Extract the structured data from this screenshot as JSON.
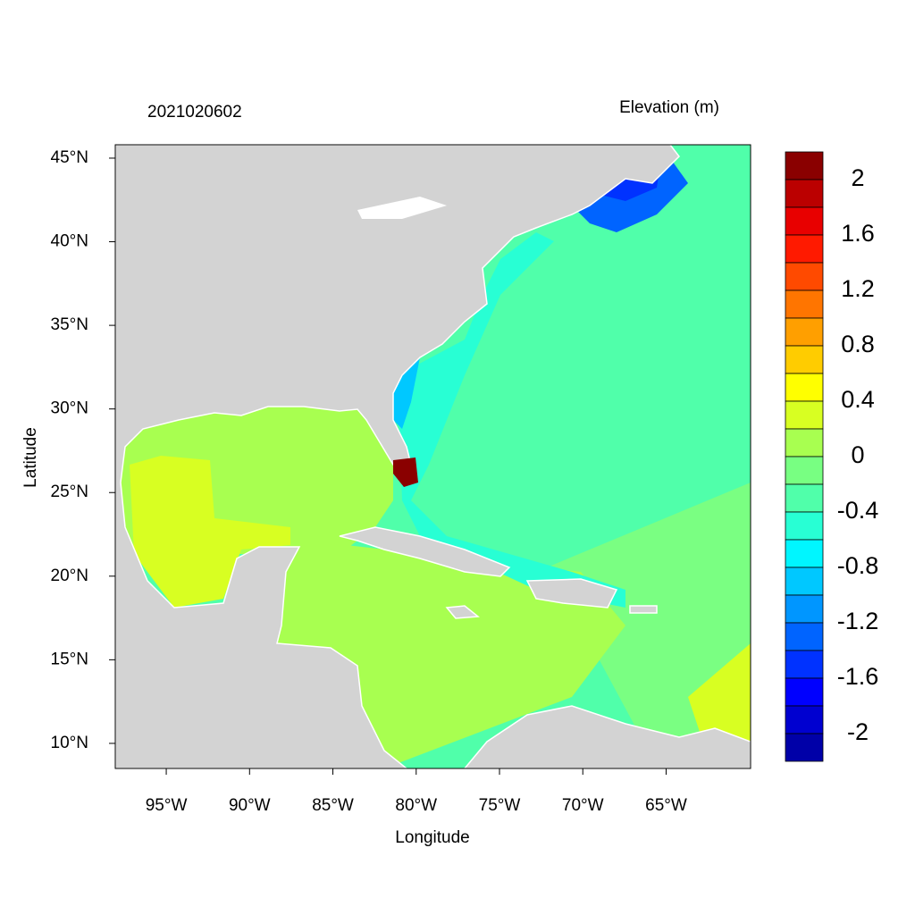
{
  "chart_data": {
    "type": "map",
    "title": "2021020602",
    "subtitle": "Elevation (m)",
    "xlabel": "Longitude",
    "ylabel": "Latitude",
    "xlim": [
      -98.06,
      -59.93
    ],
    "ylim": [
      8.5,
      45.8
    ],
    "xticks": [
      {
        "value": -95,
        "label": "95°W"
      },
      {
        "value": -90,
        "label": "90°W"
      },
      {
        "value": -85,
        "label": "85°W"
      },
      {
        "value": -80,
        "label": "80°W"
      },
      {
        "value": -75,
        "label": "75°W"
      },
      {
        "value": -70,
        "label": "70°W"
      },
      {
        "value": -65,
        "label": "65°W"
      }
    ],
    "yticks": [
      {
        "value": 45,
        "label": "45°N"
      },
      {
        "value": 40,
        "label": "40°N"
      },
      {
        "value": 35,
        "label": "35°N"
      },
      {
        "value": 30,
        "label": "30°N"
      },
      {
        "value": 25,
        "label": "25°N"
      },
      {
        "value": 20,
        "label": "20°N"
      },
      {
        "value": 15,
        "label": "15°N"
      },
      {
        "value": 10,
        "label": "10°N"
      }
    ],
    "colorbar": {
      "lim": [
        -2.2,
        2.2
      ],
      "colors": [
        "#8a0000",
        "#bb0000",
        "#e80000",
        "#ff1a00",
        "#ff4a00",
        "#ff7500",
        "#ff9f00",
        "#ffcc00",
        "#ffff00",
        "#d8ff22",
        "#a8ff50",
        "#78ff82",
        "#50ffaa",
        "#28ffd4",
        "#00f6ff",
        "#00c8ff",
        "#0096ff",
        "#0064ff",
        "#0032ff",
        "#0000ff",
        "#0000d0",
        "#0000a8"
      ],
      "ticks": [
        2,
        1.6,
        1.2,
        0.8,
        0.4,
        0,
        -0.4,
        -0.8,
        -1.2,
        -1.6,
        -2
      ]
    }
  }
}
